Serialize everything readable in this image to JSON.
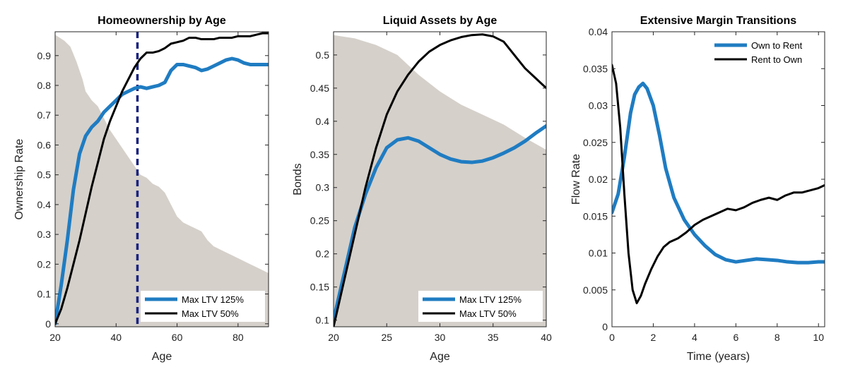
{
  "chart_data": [
    {
      "type": "line",
      "title": "Homeownership by Age",
      "xlabel": "Age",
      "ylabel": "Ownership Rate",
      "xlim": [
        20,
        90
      ],
      "ylim": [
        -0.01,
        0.98
      ],
      "xticks": [
        20,
        40,
        60,
        80
      ],
      "yticks": [
        0,
        0.1,
        0.2,
        0.3,
        0.4,
        0.5,
        0.6,
        0.7,
        0.8,
        0.9
      ],
      "background_area": {
        "color": "#d5d0ca",
        "x": [
          20,
          23,
          25,
          27,
          29,
          30,
          32,
          34,
          36,
          38,
          40,
          42,
          44,
          46,
          48,
          50,
          52,
          54,
          56,
          58,
          60,
          62,
          64,
          66,
          68,
          70,
          72,
          74,
          76,
          78,
          80,
          82,
          84,
          86,
          88,
          90
        ],
        "y": [
          0.97,
          0.95,
          0.93,
          0.88,
          0.82,
          0.78,
          0.75,
          0.73,
          0.69,
          0.65,
          0.62,
          0.59,
          0.56,
          0.53,
          0.5,
          0.49,
          0.47,
          0.46,
          0.44,
          0.4,
          0.36,
          0.34,
          0.33,
          0.32,
          0.31,
          0.28,
          0.26,
          0.25,
          0.24,
          0.23,
          0.22,
          0.21,
          0.2,
          0.19,
          0.18,
          0.17
        ]
      },
      "vline": {
        "x": 47,
        "color": "#1a237e"
      },
      "legend_position": "bottom-right",
      "series": [
        {
          "name": "Max LTV 125%",
          "color": "#1f7cc2",
          "width": 5,
          "x": [
            20,
            22,
            24,
            26,
            28,
            30,
            32,
            34,
            36,
            38,
            40,
            42,
            44,
            46,
            48,
            50,
            52,
            54,
            56,
            58,
            60,
            62,
            64,
            66,
            68,
            70,
            72,
            74,
            76,
            78,
            80,
            82,
            84,
            86,
            88,
            90
          ],
          "y": [
            0.0,
            0.13,
            0.28,
            0.45,
            0.57,
            0.63,
            0.66,
            0.68,
            0.71,
            0.73,
            0.75,
            0.77,
            0.78,
            0.79,
            0.795,
            0.79,
            0.795,
            0.8,
            0.81,
            0.85,
            0.87,
            0.87,
            0.865,
            0.86,
            0.85,
            0.855,
            0.865,
            0.875,
            0.885,
            0.89,
            0.885,
            0.875,
            0.87,
            0.87,
            0.87,
            0.87
          ]
        },
        {
          "name": "Max LTV 50%",
          "color": "#000000",
          "width": 3,
          "x": [
            20,
            22,
            24,
            26,
            28,
            30,
            32,
            34,
            36,
            38,
            40,
            42,
            44,
            46,
            48,
            50,
            52,
            54,
            56,
            58,
            60,
            62,
            64,
            66,
            68,
            70,
            72,
            74,
            76,
            78,
            80,
            82,
            84,
            86,
            88,
            90
          ],
          "y": [
            0.0,
            0.05,
            0.12,
            0.2,
            0.28,
            0.37,
            0.46,
            0.54,
            0.62,
            0.68,
            0.73,
            0.78,
            0.82,
            0.86,
            0.89,
            0.91,
            0.91,
            0.915,
            0.925,
            0.94,
            0.945,
            0.95,
            0.96,
            0.96,
            0.955,
            0.955,
            0.955,
            0.96,
            0.96,
            0.96,
            0.965,
            0.965,
            0.965,
            0.97,
            0.975,
            0.975
          ]
        }
      ]
    },
    {
      "type": "line",
      "title": "Liquid Assets by Age",
      "xlabel": "Age",
      "ylabel": "Bonds",
      "xlim": [
        20,
        40
      ],
      "ylim": [
        0.09,
        0.535
      ],
      "xticks": [
        20,
        25,
        30,
        35,
        40
      ],
      "yticks": [
        0.1,
        0.15,
        0.2,
        0.25,
        0.3,
        0.35,
        0.4,
        0.45,
        0.5
      ],
      "background_area": {
        "color": "#d5d0ca",
        "x": [
          20,
          22,
          24,
          26,
          28,
          30,
          32,
          34,
          36,
          38,
          40
        ],
        "y": [
          0.53,
          0.525,
          0.515,
          0.5,
          0.47,
          0.445,
          0.425,
          0.41,
          0.395,
          0.375,
          0.357
        ]
      },
      "legend_position": "bottom-right",
      "series": [
        {
          "name": "Max LTV 125%",
          "color": "#1f7cc2",
          "width": 5,
          "x": [
            20,
            21,
            22,
            23,
            24,
            25,
            26,
            27,
            28,
            29,
            30,
            31,
            32,
            33,
            34,
            35,
            36,
            37,
            38,
            39,
            40
          ],
          "y": [
            0.1,
            0.17,
            0.24,
            0.29,
            0.33,
            0.36,
            0.372,
            0.375,
            0.37,
            0.36,
            0.35,
            0.343,
            0.339,
            0.338,
            0.34,
            0.345,
            0.352,
            0.36,
            0.37,
            0.382,
            0.393
          ]
        },
        {
          "name": "Max LTV 50%",
          "color": "#000000",
          "width": 3,
          "x": [
            20,
            21,
            22,
            23,
            24,
            25,
            26,
            27,
            28,
            29,
            30,
            31,
            32,
            33,
            34,
            35,
            36,
            37,
            38,
            39,
            40
          ],
          "y": [
            0.09,
            0.16,
            0.23,
            0.3,
            0.36,
            0.41,
            0.445,
            0.47,
            0.49,
            0.505,
            0.515,
            0.522,
            0.527,
            0.53,
            0.531,
            0.528,
            0.52,
            0.5,
            0.48,
            0.465,
            0.45
          ]
        }
      ]
    },
    {
      "type": "line",
      "title": "Extensive Margin Transitions",
      "xlabel": "Time (years)",
      "ylabel": "Flow Rate",
      "xlim": [
        0,
        10.3
      ],
      "ylim": [
        0,
        0.04
      ],
      "xticks": [
        0,
        2,
        4,
        6,
        8,
        10
      ],
      "yticks": [
        0,
        0.005,
        0.01,
        0.015,
        0.02,
        0.025,
        0.03,
        0.035,
        0.04
      ],
      "legend_position": "top-right",
      "series": [
        {
          "name": "Own to Rent",
          "color": "#1f7cc2",
          "width": 5,
          "x": [
            0,
            0.3,
            0.6,
            0.9,
            1.1,
            1.3,
            1.5,
            1.7,
            2.0,
            2.3,
            2.6,
            3.0,
            3.5,
            4.0,
            4.5,
            5.0,
            5.5,
            6.0,
            6.5,
            7.0,
            7.5,
            8.0,
            8.5,
            9.0,
            9.5,
            10.0,
            10.3
          ],
          "y": [
            0.0155,
            0.018,
            0.023,
            0.029,
            0.0315,
            0.0325,
            0.033,
            0.0323,
            0.03,
            0.026,
            0.0215,
            0.0175,
            0.0145,
            0.0125,
            0.011,
            0.0098,
            0.0091,
            0.0088,
            0.009,
            0.0092,
            0.0091,
            0.009,
            0.0088,
            0.0087,
            0.0087,
            0.0088,
            0.0088
          ]
        },
        {
          "name": "Rent to Own",
          "color": "#000000",
          "width": 3,
          "x": [
            0,
            0.2,
            0.4,
            0.6,
            0.8,
            1.0,
            1.2,
            1.4,
            1.6,
            1.9,
            2.2,
            2.5,
            2.8,
            3.2,
            3.6,
            4.0,
            4.4,
            4.8,
            5.2,
            5.6,
            6.0,
            6.4,
            6.8,
            7.2,
            7.6,
            8.0,
            8.4,
            8.8,
            9.2,
            9.6,
            10.0,
            10.3
          ],
          "y": [
            0.0355,
            0.033,
            0.027,
            0.018,
            0.01,
            0.005,
            0.0032,
            0.0042,
            0.0058,
            0.0078,
            0.0095,
            0.0108,
            0.0115,
            0.012,
            0.0128,
            0.0138,
            0.0145,
            0.015,
            0.0155,
            0.016,
            0.0158,
            0.0162,
            0.0168,
            0.0172,
            0.0175,
            0.0172,
            0.0178,
            0.0182,
            0.0182,
            0.0185,
            0.0188,
            0.0192
          ]
        }
      ]
    }
  ]
}
